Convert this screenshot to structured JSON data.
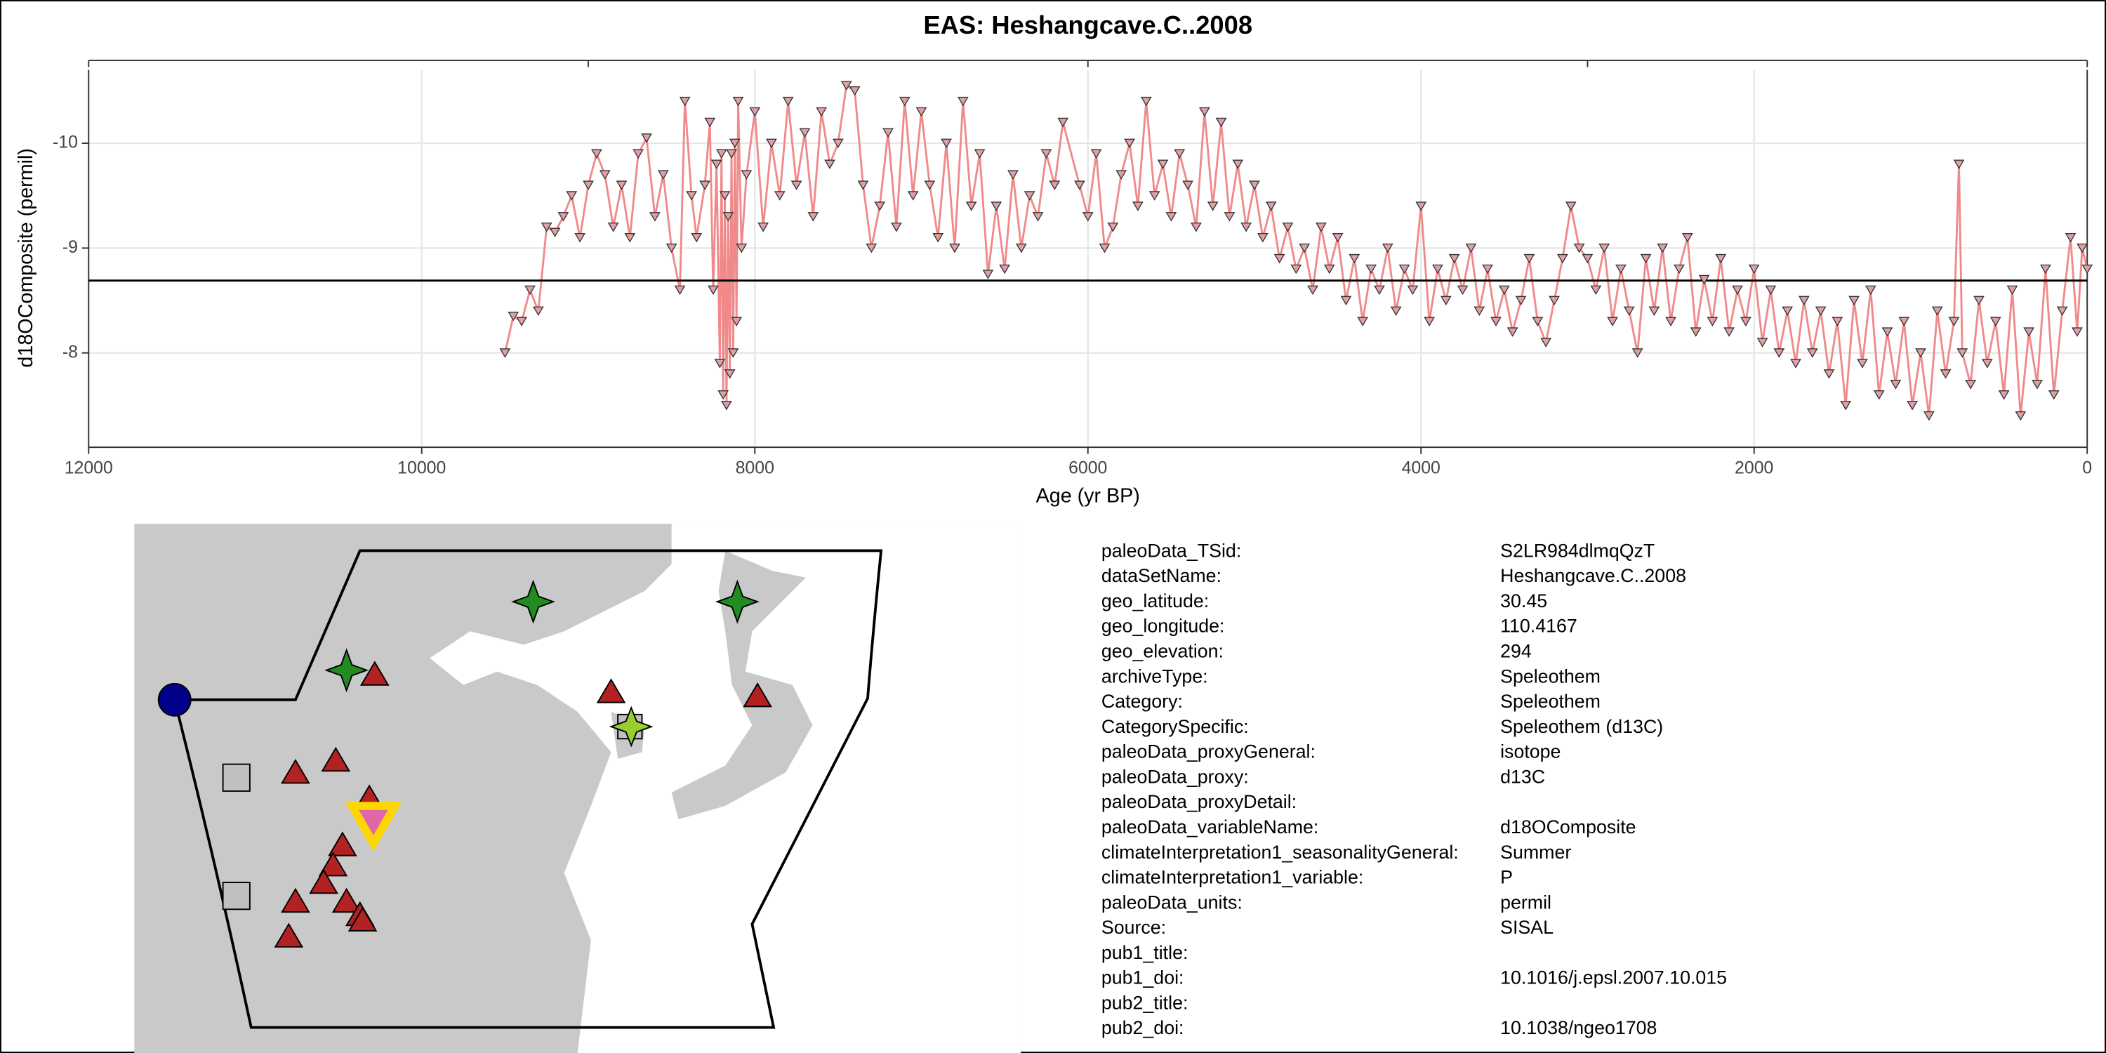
{
  "chart_data": {
    "type": "line",
    "title": "EAS: Heshangcave.C..2008",
    "xlabel": "Age (yr BP)",
    "ylabel": "d18OComposite (permil)",
    "xlim": [
      12000,
      0
    ],
    "ylim": [
      -7.1,
      -10.7
    ],
    "xticks": [
      12000,
      10000,
      8000,
      6000,
      4000,
      2000,
      0
    ],
    "yticks": [
      -10,
      -9,
      -8
    ],
    "top_xticks": [
      12000,
      9000,
      6000,
      3000,
      0
    ],
    "hline": -8.69,
    "grid": true,
    "line_color": "#f08a8a",
    "marker_fill": "#e0a0a8",
    "marker_stroke": "#333333",
    "x": [
      9500,
      9450,
      9400,
      9350,
      9300,
      9250,
      9200,
      9150,
      9100,
      9050,
      9000,
      8950,
      8900,
      8850,
      8800,
      8750,
      8700,
      8650,
      8600,
      8550,
      8500,
      8450,
      8420,
      8380,
      8350,
      8300,
      8270,
      8250,
      8230,
      8210,
      8200,
      8190,
      8180,
      8170,
      8160,
      8150,
      8140,
      8130,
      8120,
      8110,
      8100,
      8080,
      8050,
      8000,
      7950,
      7900,
      7850,
      7800,
      7750,
      7700,
      7650,
      7600,
      7550,
      7500,
      7450,
      7400,
      7350,
      7300,
      7250,
      7200,
      7150,
      7100,
      7050,
      7000,
      6950,
      6900,
      6850,
      6800,
      6750,
      6700,
      6650,
      6600,
      6550,
      6500,
      6450,
      6400,
      6350,
      6300,
      6250,
      6200,
      6150,
      6050,
      6000,
      5950,
      5900,
      5850,
      5800,
      5750,
      5700,
      5650,
      5600,
      5550,
      5500,
      5450,
      5400,
      5350,
      5300,
      5250,
      5200,
      5150,
      5100,
      5050,
      5000,
      4950,
      4900,
      4850,
      4800,
      4750,
      4700,
      4650,
      4600,
      4550,
      4500,
      4450,
      4400,
      4350,
      4300,
      4250,
      4200,
      4150,
      4100,
      4050,
      4000,
      3950,
      3900,
      3850,
      3800,
      3750,
      3700,
      3650,
      3600,
      3550,
      3500,
      3450,
      3400,
      3350,
      3300,
      3250,
      3200,
      3150,
      3100,
      3050,
      3000,
      2950,
      2900,
      2850,
      2800,
      2750,
      2700,
      2650,
      2600,
      2550,
      2500,
      2450,
      2400,
      2350,
      2300,
      2250,
      2200,
      2150,
      2100,
      2050,
      2000,
      1950,
      1900,
      1850,
      1800,
      1750,
      1700,
      1650,
      1600,
      1550,
      1500,
      1450,
      1400,
      1350,
      1300,
      1250,
      1200,
      1150,
      1100,
      1050,
      1000,
      950,
      900,
      850,
      800,
      770,
      750,
      700,
      650,
      600,
      550,
      500,
      450,
      400,
      350,
      300,
      250,
      200,
      150,
      100,
      60,
      30,
      0
    ],
    "values": [
      -8.0,
      -8.35,
      -8.3,
      -8.6,
      -8.4,
      -9.2,
      -9.15,
      -9.3,
      -9.5,
      -9.1,
      -9.6,
      -9.9,
      -9.7,
      -9.2,
      -9.6,
      -9.1,
      -9.9,
      -10.05,
      -9.3,
      -9.7,
      -9.0,
      -8.6,
      -10.4,
      -9.5,
      -9.1,
      -9.6,
      -10.2,
      -8.6,
      -9.8,
      -7.9,
      -9.9,
      -7.6,
      -9.5,
      -7.5,
      -9.3,
      -7.8,
      -9.9,
      -8.0,
      -10.0,
      -8.3,
      -10.4,
      -9.0,
      -9.7,
      -10.3,
      -9.2,
      -10.0,
      -9.5,
      -10.4,
      -9.6,
      -10.1,
      -9.3,
      -10.3,
      -9.8,
      -10.0,
      -10.55,
      -10.5,
      -9.6,
      -9.0,
      -9.4,
      -10.1,
      -9.2,
      -10.4,
      -9.5,
      -10.3,
      -9.6,
      -9.1,
      -10.0,
      -9.0,
      -10.4,
      -9.4,
      -9.9,
      -8.75,
      -9.4,
      -8.8,
      -9.7,
      -9.0,
      -9.5,
      -9.3,
      -9.9,
      -9.6,
      -10.2,
      -9.6,
      -9.3,
      -9.9,
      -9.0,
      -9.2,
      -9.7,
      -10.0,
      -9.4,
      -10.4,
      -9.5,
      -9.8,
      -9.3,
      -9.9,
      -9.6,
      -9.2,
      -10.3,
      -9.4,
      -10.2,
      -9.3,
      -9.8,
      -9.2,
      -9.6,
      -9.1,
      -9.4,
      -8.9,
      -9.2,
      -8.8,
      -9.0,
      -8.6,
      -9.2,
      -8.8,
      -9.1,
      -8.5,
      -8.9,
      -8.3,
      -8.8,
      -8.6,
      -9.0,
      -8.4,
      -8.8,
      -8.6,
      -9.4,
      -8.3,
      -8.8,
      -8.5,
      -8.9,
      -8.6,
      -9.0,
      -8.4,
      -8.8,
      -8.3,
      -8.6,
      -8.2,
      -8.5,
      -8.9,
      -8.3,
      -8.1,
      -8.5,
      -8.9,
      -9.4,
      -9.0,
      -8.9,
      -8.6,
      -9.0,
      -8.3,
      -8.8,
      -8.4,
      -8.0,
      -8.9,
      -8.4,
      -9.0,
      -8.3,
      -8.8,
      -9.1,
      -8.2,
      -8.7,
      -8.3,
      -8.9,
      -8.2,
      -8.6,
      -8.3,
      -8.8,
      -8.1,
      -8.6,
      -8.0,
      -8.4,
      -7.9,
      -8.5,
      -8.0,
      -8.4,
      -7.8,
      -8.3,
      -7.5,
      -8.5,
      -7.9,
      -8.6,
      -7.6,
      -8.2,
      -7.7,
      -8.3,
      -7.5,
      -8.0,
      -7.4,
      -8.4,
      -7.8,
      -8.3,
      -9.8,
      -8.0,
      -7.7,
      -8.5,
      -7.9,
      -8.3,
      -7.6,
      -8.6,
      -7.4,
      -8.2,
      -7.7,
      -8.8,
      -7.6,
      -8.4,
      -9.1,
      -8.2,
      -9.0,
      -8.8
    ]
  },
  "metadata": {
    "rows": [
      {
        "key": "paleoData_TSid:",
        "value": "S2LR984dlmqQzT"
      },
      {
        "key": "dataSetName:",
        "value": "Heshangcave.C..2008"
      },
      {
        "key": "geo_latitude:",
        "value": "30.45"
      },
      {
        "key": "geo_longitude:",
        "value": "110.4167"
      },
      {
        "key": "geo_elevation:",
        "value": "294"
      },
      {
        "key": "archiveType:",
        "value": "Speleothem"
      },
      {
        "key": "Category:",
        "value": "Speleothem"
      },
      {
        "key": "CategorySpecific:",
        "value": "Speleothem (d13C)"
      },
      {
        "key": "paleoData_proxyGeneral:",
        "value": "isotope"
      },
      {
        "key": "paleoData_proxy:",
        "value": "d13C"
      },
      {
        "key": "paleoData_proxyDetail:"
      },
      {
        "key": "paleoData_variableName:",
        "value": "d18OComposite"
      },
      {
        "key": "climateInterpretation1_seasonalityGeneral:",
        "value": "Summer"
      },
      {
        "key": "climateInterpretation1_variable:",
        "value": "P"
      },
      {
        "key": "paleoData_units:",
        "value": "permil"
      },
      {
        "key": "Source:",
        "value": "SISAL"
      },
      {
        "key": "pub1_title:"
      },
      {
        "key": "pub1_doi:",
        "value": "10.1016/j.epsl.2007.10.015"
      },
      {
        "key": "pub2_title:"
      },
      {
        "key": "pub2_doi:",
        "value": "10.1038/ngeo1708"
      }
    ]
  }
}
